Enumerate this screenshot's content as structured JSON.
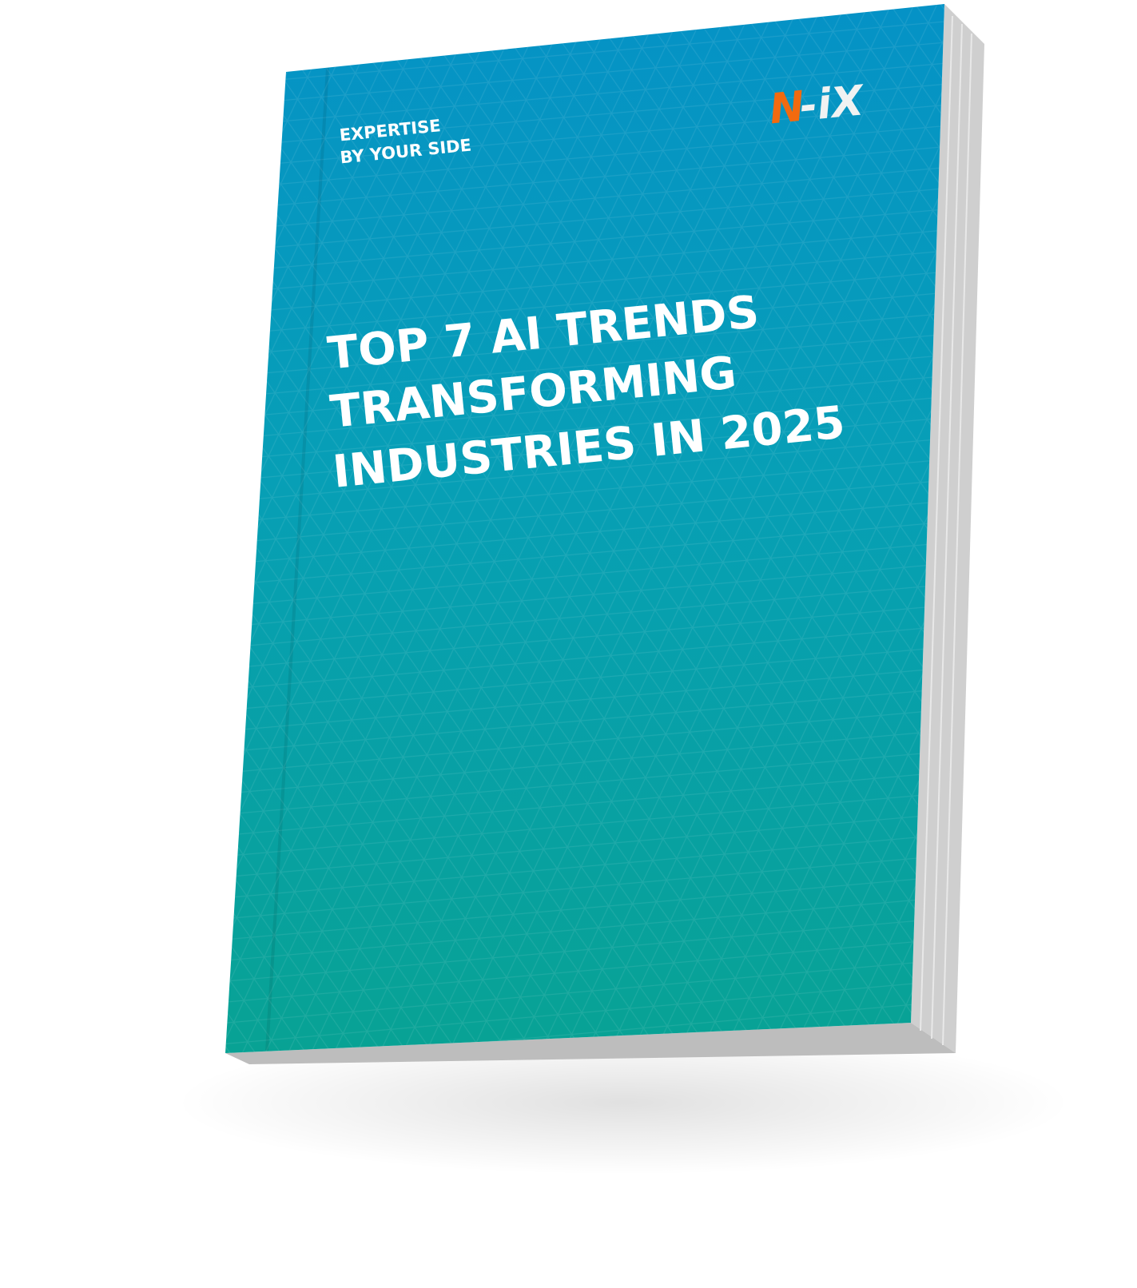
{
  "cover": {
    "tagline_line1": "EXPERTISE",
    "tagline_line2": "BY YOUR SIDE",
    "title_line1": "TOP 7 AI TRENDS",
    "title_line2": "TRANSFORMING",
    "title_line3": "INDUSTRIES IN 2025",
    "logo": {
      "part1": "N",
      "part2": "-iX"
    }
  },
  "colors": {
    "cover_top": "#0592c6",
    "cover_bottom": "#08a294",
    "logo_accent": "#f26a0f",
    "text": "#ffffff"
  }
}
